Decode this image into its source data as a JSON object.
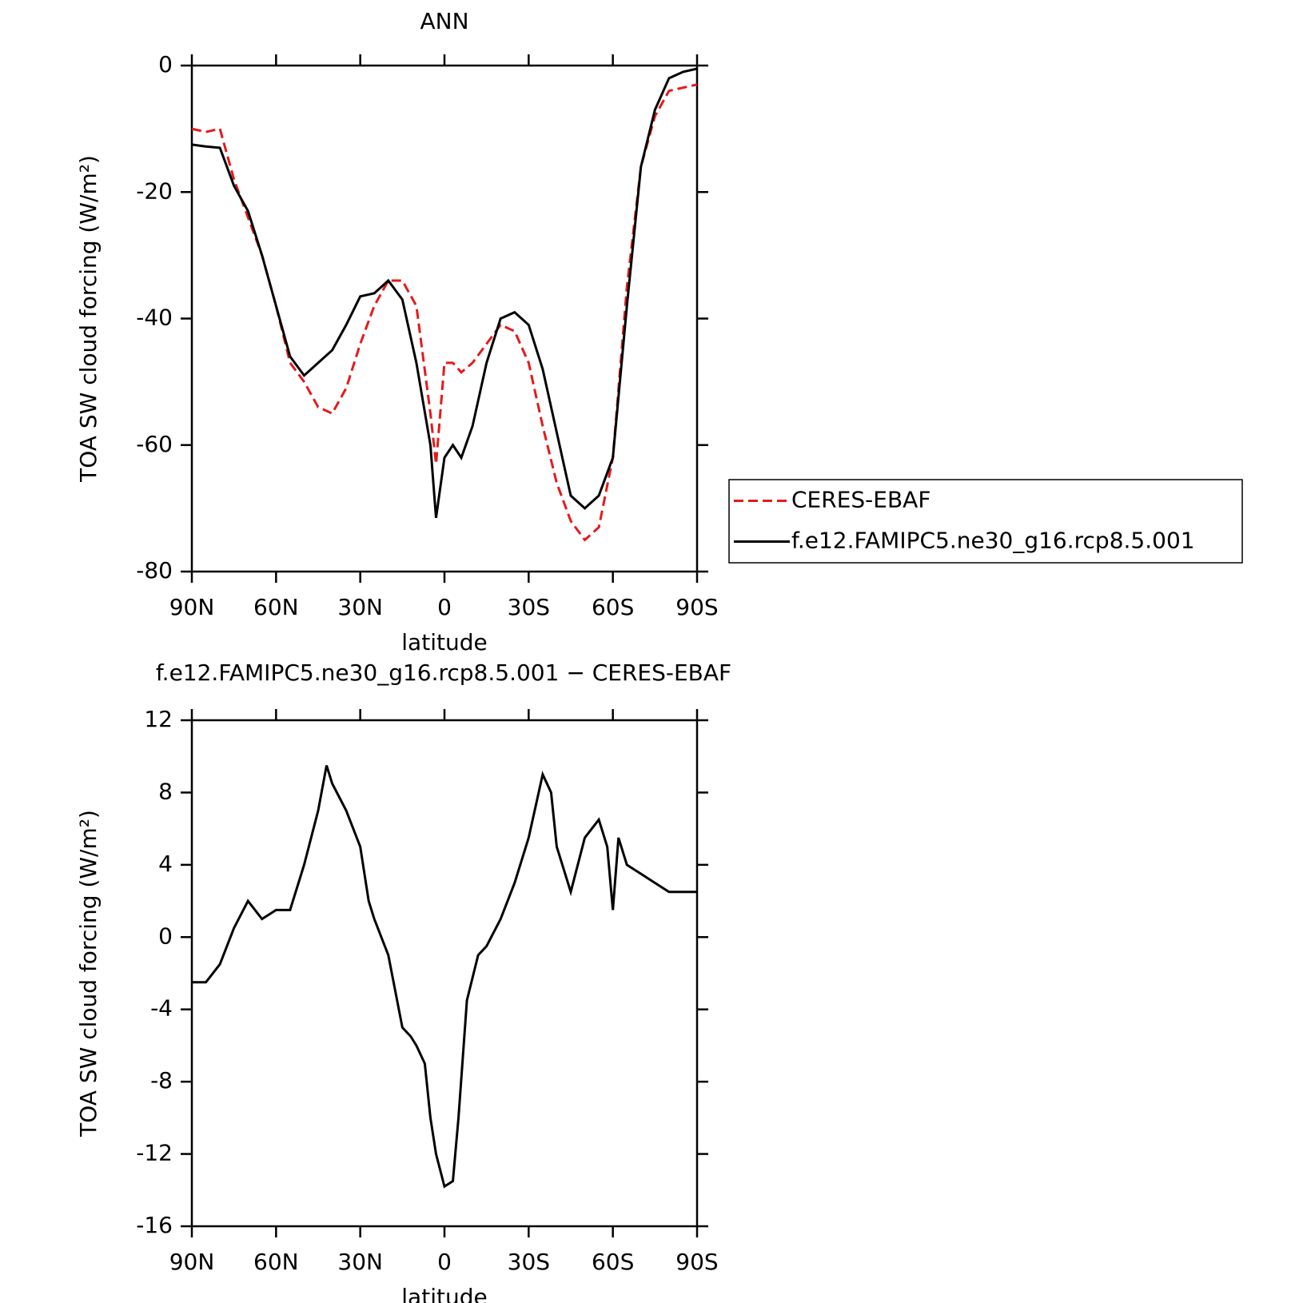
{
  "chart_data": [
    {
      "type": "line",
      "title": "ANN",
      "x_label": "latitude",
      "y_label": "TOA SW cloud forcing (W/m²)",
      "x": [
        90,
        85,
        80,
        75,
        70,
        65,
        60,
        55,
        50,
        45,
        40,
        35,
        30,
        25,
        20,
        15,
        10,
        5,
        3,
        0,
        -3,
        -6,
        -10,
        -15,
        -20,
        -25,
        -30,
        -35,
        -40,
        -45,
        -50,
        -55,
        -60,
        -65,
        -70,
        -75,
        -80,
        -85,
        -90
      ],
      "series": [
        {
          "name": "CERES-EBAF",
          "color": "#e41a1c",
          "line_style": "dashed",
          "values": [
            -10,
            -10.5,
            -10,
            -18,
            -24,
            -30,
            -38,
            -47,
            -50,
            -54,
            -55,
            -51,
            -44,
            -38,
            -34,
            -34,
            -38,
            -55,
            -63,
            -47,
            -47,
            -48.5,
            -47,
            -44,
            -41,
            -42,
            -47,
            -57,
            -66,
            -72,
            -75,
            -73,
            -62,
            -35,
            -16,
            -8,
            -4,
            -3.5,
            -3
          ]
        },
        {
          "name": "f.e12.FAMIPC5.ne30_g16.rcp8.5.001",
          "color": "#000000",
          "line_style": "solid",
          "values": [
            -12.5,
            -12.8,
            -13,
            -19,
            -23,
            -30,
            -38,
            -46,
            -49,
            -47,
            -45,
            -41,
            -36.5,
            -36,
            -34,
            -37,
            -47,
            -60,
            -71.5,
            -62,
            -60,
            -62,
            -57,
            -47,
            -40,
            -39,
            -41,
            -48,
            -58,
            -68,
            -70,
            -68,
            -62,
            -38,
            -16,
            -7,
            -2,
            -1,
            -0.5
          ]
        }
      ],
      "xlim": [
        90,
        -90
      ],
      "xticks": [
        {
          "value": 90,
          "label": "90N"
        },
        {
          "value": 60,
          "label": "60N"
        },
        {
          "value": 30,
          "label": "30N"
        },
        0,
        {
          "value": -30,
          "label": "30S"
        },
        {
          "value": -60,
          "label": "60S"
        },
        {
          "value": -90,
          "label": "90S"
        }
      ],
      "ylim": [
        -80,
        0
      ],
      "yticks": [
        -80,
        -60,
        -40,
        -20,
        0
      ],
      "legend": "right"
    },
    {
      "type": "line",
      "title": "f.e12.FAMIPC5.ne30_g16.rcp8.5.001 − CERES-EBAF",
      "x_label": "latitude",
      "y_label": "TOA SW cloud forcing (W/m²)",
      "x": [
        90,
        85,
        80,
        75,
        70,
        65,
        60,
        55,
        50,
        45,
        42,
        40,
        35,
        30,
        27,
        25,
        20,
        15,
        12,
        10,
        7,
        5,
        3,
        0,
        -3,
        -5,
        -8,
        -12,
        -15,
        -20,
        -25,
        -30,
        -35,
        -38,
        -40,
        -45,
        -50,
        -55,
        -58,
        -60,
        -62,
        -65,
        -70,
        -75,
        -80,
        -85,
        -90
      ],
      "series": [
        {
          "color": "#000000",
          "line_style": "solid",
          "values": [
            -2.5,
            -2.5,
            -1.5,
            0.5,
            2,
            1,
            1.5,
            1.5,
            4,
            7,
            9.5,
            8.5,
            7,
            5,
            2,
            1,
            -1,
            -5,
            -5.5,
            -6,
            -7,
            -10,
            -12,
            -13.8,
            -13.5,
            -10,
            -3.5,
            -1,
            -0.5,
            1,
            3,
            5.5,
            9,
            8,
            5,
            2.5,
            5.5,
            6.5,
            5,
            1.5,
            5.5,
            4,
            3.5,
            3,
            2.5,
            2.5,
            2.5
          ]
        }
      ],
      "xlim": [
        90,
        -90
      ],
      "xticks": [
        {
          "value": 90,
          "label": "90N"
        },
        {
          "value": 60,
          "label": "60N"
        },
        {
          "value": 30,
          "label": "30N"
        },
        0,
        {
          "value": -30,
          "label": "30S"
        },
        {
          "value": -60,
          "label": "60S"
        },
        {
          "value": -90,
          "label": "90S"
        }
      ],
      "ylim": [
        -16,
        12
      ],
      "yticks": [
        -16,
        -12,
        -8,
        -4,
        0,
        4,
        8,
        12
      ]
    }
  ]
}
